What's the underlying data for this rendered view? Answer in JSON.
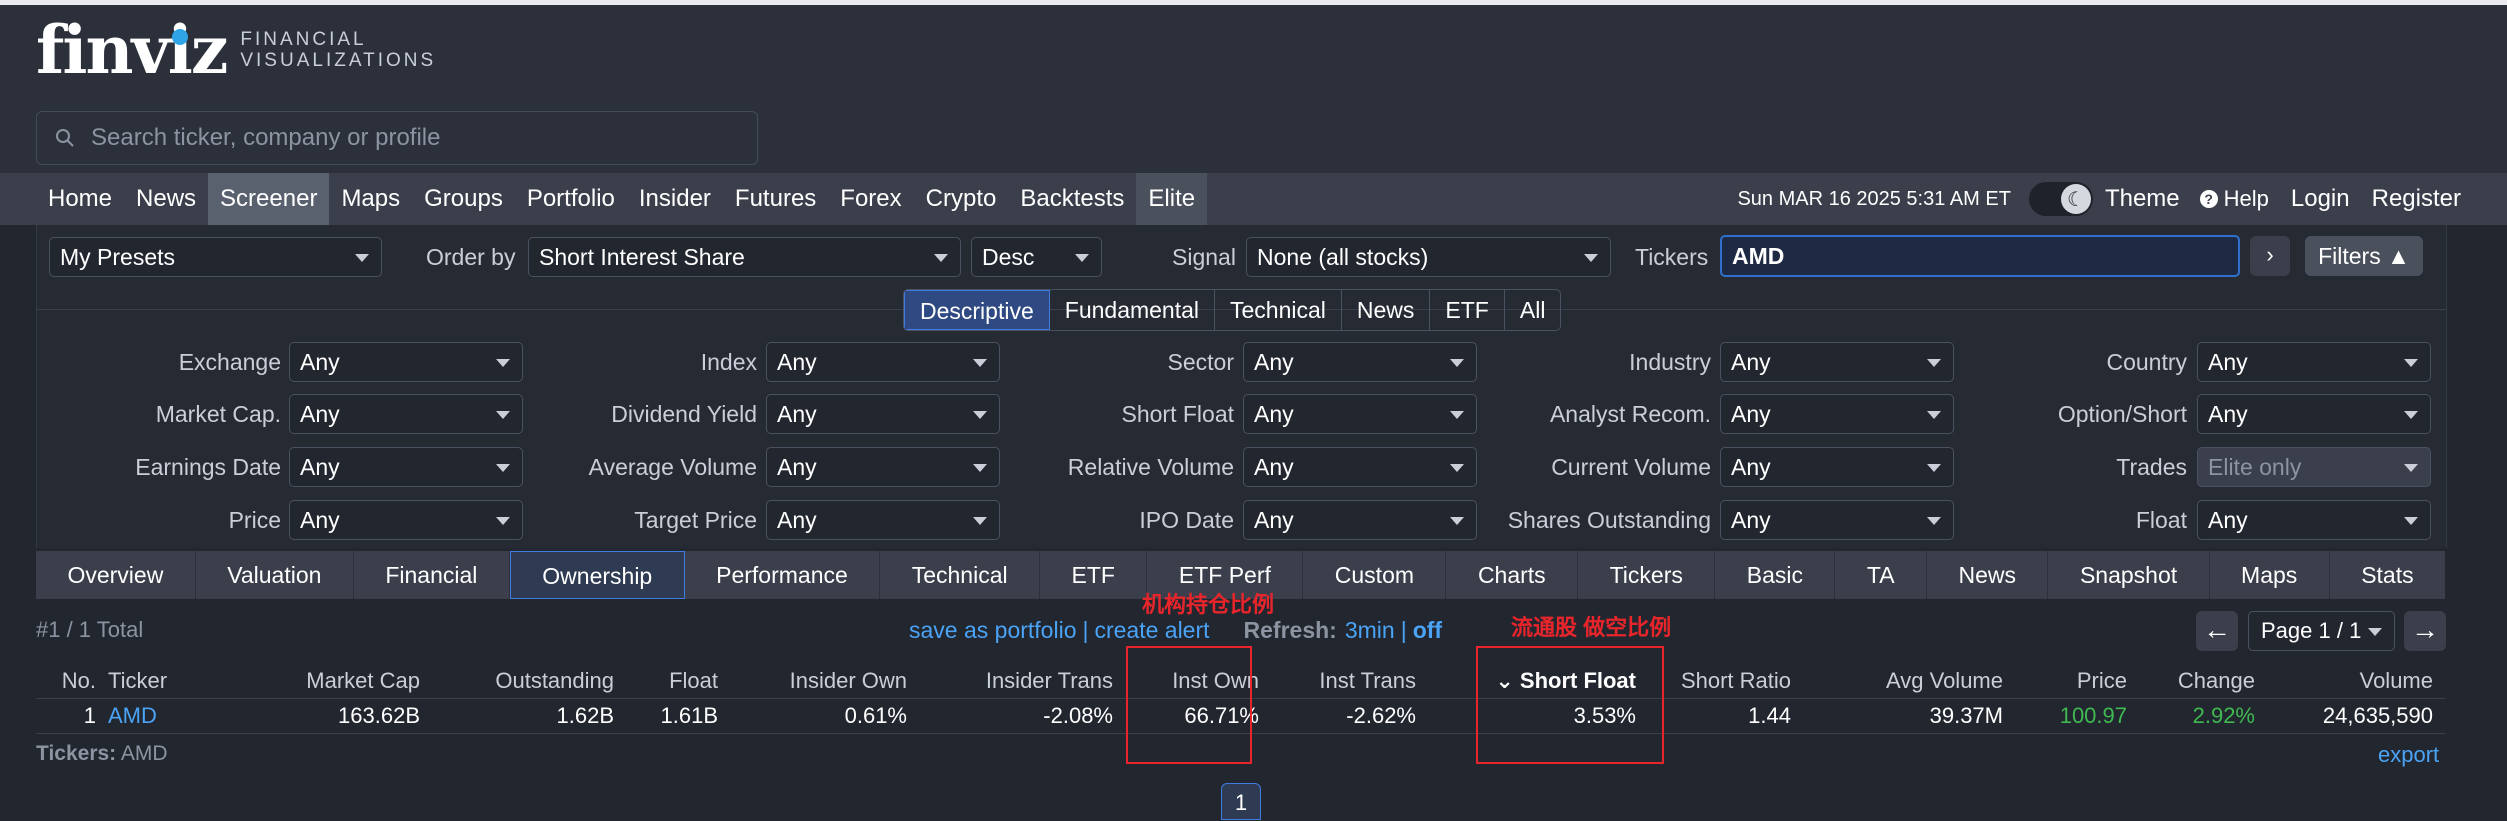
{
  "brand": {
    "logo": "finviz",
    "tagline_1": "FINANCIAL",
    "tagline_2": "VISUALIZATIONS"
  },
  "search": {
    "placeholder": "Search ticker, company or profile"
  },
  "nav": {
    "items": [
      "Home",
      "News",
      "Screener",
      "Maps",
      "Groups",
      "Portfolio",
      "Insider",
      "Futures",
      "Forex",
      "Crypto",
      "Backtests",
      "Elite"
    ],
    "active": "Screener",
    "date": "Sun MAR 16 2025 5:31 AM ET",
    "theme": "Theme",
    "help": "Help",
    "login": "Login",
    "register": "Register"
  },
  "controls": {
    "presets": "My Presets",
    "order_by_label": "Order by",
    "order_by": "Short Interest Share",
    "direction": "Desc",
    "signal_label": "Signal",
    "signal": "None (all stocks)",
    "tickers_label": "Tickers",
    "tickers_value": "AMD",
    "arrow": "›",
    "filters_button": "Filters ▲"
  },
  "filter_tabs": [
    "Descriptive",
    "Fundamental",
    "Technical",
    "News",
    "ETF",
    "All"
  ],
  "filters": [
    {
      "label": "Exchange",
      "value": "Any"
    },
    {
      "label": "Index",
      "value": "Any"
    },
    {
      "label": "Sector",
      "value": "Any"
    },
    {
      "label": "Industry",
      "value": "Any"
    },
    {
      "label": "Country",
      "value": "Any"
    },
    {
      "label": "Market Cap.",
      "value": "Any"
    },
    {
      "label": "Dividend Yield",
      "value": "Any"
    },
    {
      "label": "Short Float",
      "value": "Any"
    },
    {
      "label": "Analyst Recom.",
      "value": "Any"
    },
    {
      "label": "Option/Short",
      "value": "Any"
    },
    {
      "label": "Earnings Date",
      "value": "Any"
    },
    {
      "label": "Average Volume",
      "value": "Any"
    },
    {
      "label": "Relative Volume",
      "value": "Any"
    },
    {
      "label": "Current Volume",
      "value": "Any"
    },
    {
      "label": "Trades",
      "value": "Elite only"
    },
    {
      "label": "Price",
      "value": "Any"
    },
    {
      "label": "Target Price",
      "value": "Any"
    },
    {
      "label": "IPO Date",
      "value": "Any"
    },
    {
      "label": "Shares Outstanding",
      "value": "Any"
    },
    {
      "label": "Float",
      "value": "Any"
    }
  ],
  "view_tabs": [
    "Overview",
    "Valuation",
    "Financial",
    "Ownership",
    "Performance",
    "Technical",
    "ETF",
    "ETF Perf",
    "Custom",
    "Charts",
    "Tickers",
    "Basic",
    "TA",
    "News",
    "Snapshot",
    "Maps",
    "Stats"
  ],
  "results": {
    "total": "#1 / 1 Total",
    "save_portfolio": "save as portfolio",
    "sep": "|",
    "create_alert": "create alert",
    "refresh_label": "Refresh:",
    "refresh_value": "3min",
    "off": "off",
    "page": "Page 1 / 1",
    "prev": "←",
    "next": "→",
    "columns": [
      "No.",
      "Ticker",
      "Market Cap",
      "Outstanding",
      "Float",
      "Insider Own",
      "Insider Trans",
      "Inst Own",
      "Inst Trans",
      "Short Float",
      "Short Ratio",
      "Avg Volume",
      "Price",
      "Change",
      "Volume"
    ],
    "row": [
      "1",
      "AMD",
      "163.62B",
      "1.62B",
      "1.61B",
      "0.61%",
      "-2.08%",
      "66.71%",
      "-2.62%",
      "3.53%",
      "1.44",
      "39.37M",
      "100.97",
      "2.92%",
      "24,635,590"
    ],
    "tickers_label": "Tickers:",
    "tickers_value": "AMD",
    "export": "export",
    "page_number": "1"
  },
  "annotations": {
    "inst_own": "机构持仓比例",
    "short_float": "流通股 做空比例"
  },
  "colors": {
    "accent_blue": "#4aa3f5",
    "positive_green": "#3fb950",
    "annotation_red": "#e8252b"
  }
}
